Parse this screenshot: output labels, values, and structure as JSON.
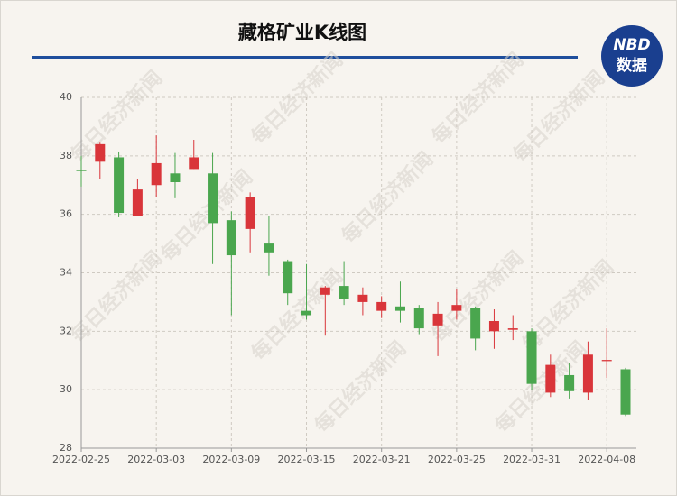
{
  "chart_data": {
    "type": "candlestick",
    "title": "藏格矿业K线图",
    "logo": {
      "top": "NBD",
      "bottom": "数据"
    },
    "watermark": "每日经济新闻",
    "categories": [
      "2022-02-25",
      null,
      null,
      null,
      "2022-03-03",
      null,
      null,
      null,
      "2022-03-09",
      null,
      null,
      null,
      "2022-03-15",
      null,
      null,
      null,
      "2022-03-21",
      null,
      null,
      null,
      "2022-03-25",
      null,
      null,
      null,
      "2022-03-31",
      null,
      null,
      null,
      "2022-04-08",
      null
    ],
    "open": [
      37.52,
      37.8,
      37.95,
      35.95,
      37.0,
      37.4,
      37.55,
      37.4,
      35.8,
      35.5,
      35.0,
      34.4,
      32.7,
      33.25,
      33.55,
      33.0,
      32.7,
      32.85,
      32.8,
      32.2,
      32.7,
      32.8,
      32.0,
      32.05,
      32.0,
      29.9,
      30.5,
      29.9,
      30.98,
      30.7
    ],
    "close": [
      37.48,
      38.4,
      36.05,
      36.85,
      37.75,
      37.1,
      37.95,
      35.7,
      34.6,
      36.6,
      34.7,
      33.3,
      32.55,
      33.5,
      33.1,
      33.25,
      33.0,
      32.7,
      32.1,
      32.6,
      32.9,
      31.75,
      32.35,
      32.1,
      30.2,
      30.85,
      29.95,
      31.2,
      31.02,
      29.15
    ],
    "high": [
      38.0,
      38.45,
      38.15,
      37.2,
      38.7,
      38.1,
      38.55,
      38.1,
      36.1,
      36.75,
      35.95,
      34.45,
      34.3,
      33.55,
      34.4,
      33.5,
      33.2,
      33.7,
      32.9,
      33.0,
      33.45,
      32.85,
      32.75,
      32.55,
      32.1,
      31.2,
      30.9,
      31.65,
      32.1,
      30.75
    ],
    "low": [
      36.95,
      37.2,
      35.9,
      35.95,
      36.6,
      36.55,
      37.55,
      34.3,
      32.55,
      34.7,
      33.9,
      32.9,
      32.4,
      31.85,
      32.9,
      32.55,
      32.45,
      32.3,
      31.9,
      31.15,
      32.4,
      31.35,
      31.4,
      31.7,
      30.0,
      29.75,
      29.7,
      29.65,
      30.4,
      29.1
    ],
    "up_color": "#d9353a",
    "down_color": "#4aa64e",
    "ylim": [
      28,
      40
    ],
    "yticks": [
      28,
      30,
      32,
      34,
      36,
      38,
      40
    ],
    "grid": true
  }
}
